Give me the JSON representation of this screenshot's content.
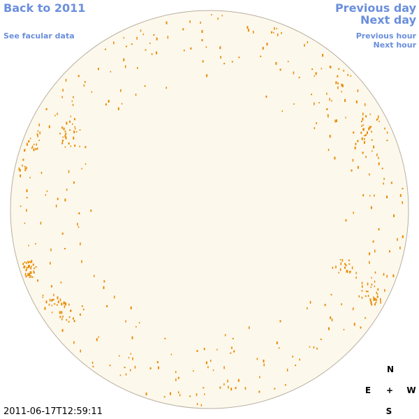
{
  "navigation": {
    "back": "Back to 2011",
    "facular_data": "See facular data",
    "previous_day": "Previous day",
    "next_day": "Next day",
    "previous_hour": "Previous hour",
    "next_hour": "Next hour"
  },
  "timestamp": "2011-06-17T12:59:11",
  "compass": {
    "north": "N",
    "east": "E",
    "center": "+",
    "west": "W",
    "south": "S"
  }
}
